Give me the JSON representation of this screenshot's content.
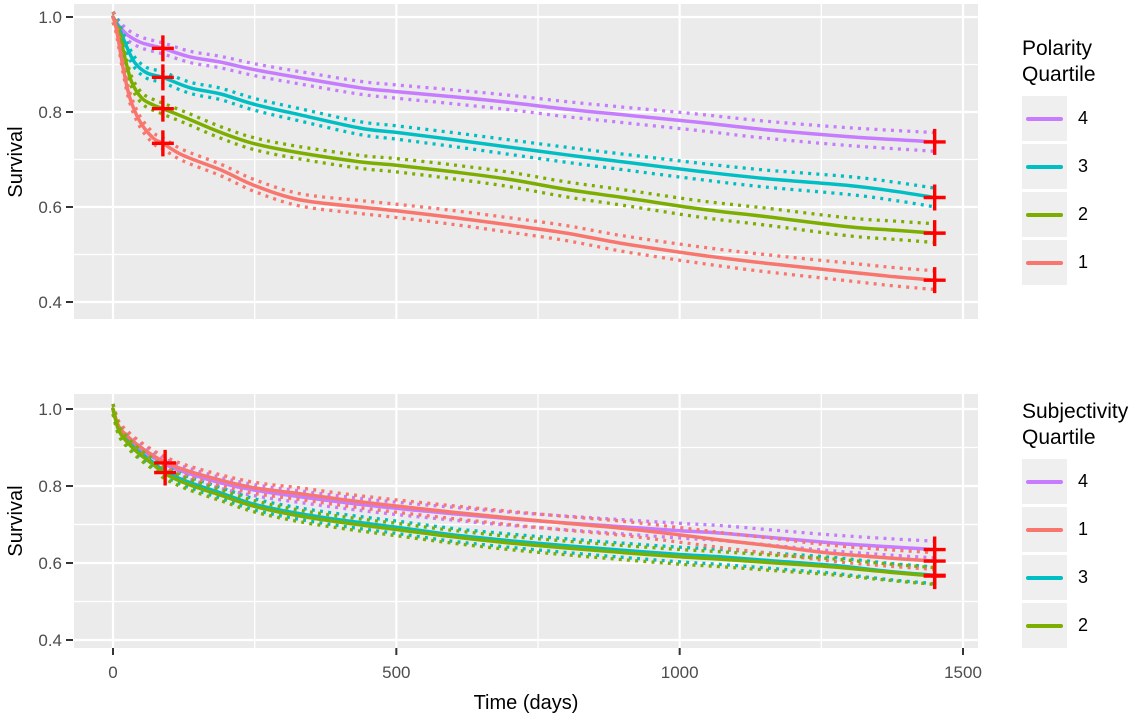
{
  "colors": {
    "page_bg": "#FFFFFF",
    "panel_bg": "#EBEBEB",
    "grid": "#FFFFFF",
    "axis_text": "#4D4D4D",
    "axis_tick": "#333333",
    "axis_title": "#000000",
    "censor_mark": "#FF0000",
    "legend_key_bg": "#EFEFEF",
    "quartile_1": "#F8766D",
    "quartile_2": "#7CAE00",
    "quartile_3": "#00BFC4",
    "quartile_4": "#C77CFF"
  },
  "chart_data": [
    {
      "id": "polarity-survival",
      "type": "line",
      "title": "",
      "xlabel": "",
      "ylabel": "Survival",
      "xlim": [
        -75,
        1530
      ],
      "ylim": [
        0.4,
        1.0
      ],
      "grid": true,
      "show_x_tick_labels": false,
      "x_ticks": [
        {
          "v": 0,
          "label": "0"
        },
        {
          "v": 500,
          "label": "500"
        },
        {
          "v": 1000,
          "label": "1000"
        },
        {
          "v": 1500,
          "label": "1500"
        }
      ],
      "x_minor": [
        250,
        750,
        1250
      ],
      "y_ticks": [
        {
          "v": 1.0,
          "label": "1.0"
        },
        {
          "v": 0.8,
          "label": "0.8"
        },
        {
          "v": 0.6,
          "label": "0.6"
        },
        {
          "v": 0.4,
          "label": "0.4"
        }
      ],
      "y_minor": [
        0.9,
        0.7,
        0.5
      ],
      "legend": {
        "title": "Polarity\nQuartile",
        "position": "right",
        "entries": [
          {
            "label": "4",
            "color": "#C77CFF"
          },
          {
            "label": "3",
            "color": "#00BFC4"
          },
          {
            "label": "2",
            "color": "#7CAE00"
          },
          {
            "label": "1",
            "color": "#F8766D"
          }
        ]
      },
      "ci": {
        "style": "dotted",
        "base": 0.011,
        "per_day": 6e-06
      },
      "series": [
        {
          "name": "4",
          "color": "#C77CFF",
          "points": [
            [
              0,
              1.0
            ],
            [
              6,
              0.989
            ],
            [
              12,
              0.979
            ],
            [
              26,
              0.962
            ],
            [
              48,
              0.947
            ],
            [
              68,
              0.94
            ],
            [
              88,
              0.934
            ],
            [
              136,
              0.916
            ],
            [
              190,
              0.905
            ],
            [
              250,
              0.889
            ],
            [
              330,
              0.872
            ],
            [
              436,
              0.851
            ],
            [
              500,
              0.843
            ],
            [
              600,
              0.832
            ],
            [
              700,
              0.82
            ],
            [
              800,
              0.806
            ],
            [
              900,
              0.794
            ],
            [
              1035,
              0.778
            ],
            [
              1150,
              0.763
            ],
            [
              1300,
              0.748
            ],
            [
              1450,
              0.737
            ]
          ]
        },
        {
          "name": "3",
          "color": "#00BFC4",
          "points": [
            [
              0,
              1.0
            ],
            [
              6,
              0.987
            ],
            [
              12,
              0.973
            ],
            [
              25,
              0.935
            ],
            [
              39,
              0.903
            ],
            [
              60,
              0.882
            ],
            [
              88,
              0.873
            ],
            [
              136,
              0.851
            ],
            [
              190,
              0.838
            ],
            [
              250,
              0.816
            ],
            [
              330,
              0.794
            ],
            [
              436,
              0.766
            ],
            [
              500,
              0.757
            ],
            [
              600,
              0.742
            ],
            [
              700,
              0.726
            ],
            [
              800,
              0.71
            ],
            [
              900,
              0.695
            ],
            [
              1035,
              0.675
            ],
            [
              1150,
              0.66
            ],
            [
              1300,
              0.645
            ],
            [
              1380,
              0.633
            ],
            [
              1450,
              0.62
            ]
          ]
        },
        {
          "name": "2",
          "color": "#7CAE00",
          "points": [
            [
              0,
              1.0
            ],
            [
              6,
              0.98
            ],
            [
              12,
              0.962
            ],
            [
              21,
              0.914
            ],
            [
              33,
              0.863
            ],
            [
              51,
              0.829
            ],
            [
              71,
              0.815
            ],
            [
              88,
              0.807
            ],
            [
              130,
              0.787
            ],
            [
              190,
              0.757
            ],
            [
              250,
              0.733
            ],
            [
              330,
              0.714
            ],
            [
              436,
              0.695
            ],
            [
              500,
              0.688
            ],
            [
              600,
              0.674
            ],
            [
              700,
              0.658
            ],
            [
              800,
              0.637
            ],
            [
              900,
              0.62
            ],
            [
              1035,
              0.596
            ],
            [
              1150,
              0.58
            ],
            [
              1300,
              0.558
            ],
            [
              1380,
              0.551
            ],
            [
              1450,
              0.545
            ]
          ]
        },
        {
          "name": "1",
          "color": "#F8766D",
          "points": [
            [
              0,
              1.0
            ],
            [
              4,
              0.985
            ],
            [
              9,
              0.956
            ],
            [
              18,
              0.892
            ],
            [
              30,
              0.829
            ],
            [
              48,
              0.779
            ],
            [
              71,
              0.745
            ],
            [
              88,
              0.734
            ],
            [
              123,
              0.709
            ],
            [
              190,
              0.678
            ],
            [
              250,
              0.645
            ],
            [
              330,
              0.615
            ],
            [
              436,
              0.6
            ],
            [
              500,
              0.592
            ],
            [
              600,
              0.578
            ],
            [
              700,
              0.562
            ],
            [
              800,
              0.545
            ],
            [
              900,
              0.523
            ],
            [
              1035,
              0.499
            ],
            [
              1150,
              0.482
            ],
            [
              1300,
              0.463
            ],
            [
              1380,
              0.453
            ],
            [
              1450,
              0.446
            ]
          ]
        }
      ],
      "censor_marks": [
        [
          88,
          0.934
        ],
        [
          88,
          0.873
        ],
        [
          88,
          0.807
        ],
        [
          88,
          0.734
        ],
        [
          1450,
          0.737
        ],
        [
          1450,
          0.62
        ],
        [
          1450,
          0.545
        ],
        [
          1450,
          0.446
        ]
      ]
    },
    {
      "id": "subjectivity-survival",
      "type": "line",
      "title": "",
      "xlabel": "Time (days)",
      "ylabel": "Survival",
      "xlim": [
        -75,
        1530
      ],
      "ylim": [
        0.4,
        1.0
      ],
      "grid": true,
      "show_x_tick_labels": true,
      "x_ticks": [
        {
          "v": 0,
          "label": "0"
        },
        {
          "v": 500,
          "label": "500"
        },
        {
          "v": 1000,
          "label": "1000"
        },
        {
          "v": 1500,
          "label": "1500"
        }
      ],
      "x_minor": [
        250,
        750,
        1250
      ],
      "y_ticks": [
        {
          "v": 1.0,
          "label": "1.0"
        },
        {
          "v": 0.8,
          "label": "0.8"
        },
        {
          "v": 0.6,
          "label": "0.6"
        },
        {
          "v": 0.4,
          "label": "0.4"
        }
      ],
      "y_minor": [
        0.9,
        0.7,
        0.5
      ],
      "legend": {
        "title": "Subjectivity\nQuartile",
        "position": "right",
        "entries": [
          {
            "label": "4",
            "color": "#C77CFF"
          },
          {
            "label": "1",
            "color": "#F8766D"
          },
          {
            "label": "3",
            "color": "#00BFC4"
          },
          {
            "label": "2",
            "color": "#7CAE00"
          }
        ]
      },
      "ci": {
        "style": "dotted",
        "base": 0.013,
        "per_day": 6e-06
      },
      "series": [
        {
          "name": "4",
          "color": "#C77CFF",
          "points": [
            [
              0,
              1.0
            ],
            [
              10,
              0.952
            ],
            [
              25,
              0.926
            ],
            [
              45,
              0.9
            ],
            [
              70,
              0.875
            ],
            [
              92,
              0.856
            ],
            [
              130,
              0.834
            ],
            [
              190,
              0.808
            ],
            [
              250,
              0.789
            ],
            [
              330,
              0.772
            ],
            [
              420,
              0.755
            ],
            [
              500,
              0.742
            ],
            [
              600,
              0.728
            ],
            [
              700,
              0.715
            ],
            [
              800,
              0.704
            ],
            [
              900,
              0.694
            ],
            [
              1000,
              0.684
            ],
            [
              1070,
              0.678
            ],
            [
              1170,
              0.665
            ],
            [
              1270,
              0.652
            ],
            [
              1370,
              0.642
            ],
            [
              1450,
              0.635
            ]
          ]
        },
        {
          "name": "3",
          "color": "#00BFC4",
          "points": [
            [
              0,
              1.0
            ],
            [
              10,
              0.948
            ],
            [
              25,
              0.918
            ],
            [
              45,
              0.89
            ],
            [
              70,
              0.862
            ],
            [
              92,
              0.838
            ],
            [
              130,
              0.812
            ],
            [
              190,
              0.782
            ],
            [
              250,
              0.752
            ],
            [
              330,
              0.728
            ],
            [
              420,
              0.708
            ],
            [
              500,
              0.693
            ],
            [
              600,
              0.673
            ],
            [
              700,
              0.658
            ],
            [
              800,
              0.645
            ],
            [
              900,
              0.633
            ],
            [
              1000,
              0.622
            ],
            [
              1070,
              0.616
            ],
            [
              1170,
              0.605
            ],
            [
              1270,
              0.594
            ],
            [
              1370,
              0.578
            ],
            [
              1450,
              0.568
            ]
          ]
        },
        {
          "name": "1",
          "color": "#F8766D",
          "points": [
            [
              0,
              1.0
            ],
            [
              10,
              0.955
            ],
            [
              25,
              0.93
            ],
            [
              45,
              0.905
            ],
            [
              70,
              0.88
            ],
            [
              92,
              0.862
            ],
            [
              130,
              0.84
            ],
            [
              190,
              0.815
            ],
            [
              250,
              0.795
            ],
            [
              330,
              0.78
            ],
            [
              420,
              0.762
            ],
            [
              500,
              0.748
            ],
            [
              600,
              0.732
            ],
            [
              700,
              0.717
            ],
            [
              800,
              0.703
            ],
            [
              900,
              0.69
            ],
            [
              1000,
              0.673
            ],
            [
              1070,
              0.66
            ],
            [
              1170,
              0.643
            ],
            [
              1270,
              0.625
            ],
            [
              1370,
              0.613
            ],
            [
              1450,
              0.605
            ]
          ]
        },
        {
          "name": "2",
          "color": "#7CAE00",
          "points": [
            [
              0,
              1.0
            ],
            [
              10,
              0.945
            ],
            [
              25,
              0.914
            ],
            [
              45,
              0.885
            ],
            [
              70,
              0.857
            ],
            [
              92,
              0.832
            ],
            [
              130,
              0.806
            ],
            [
              190,
              0.776
            ],
            [
              250,
              0.747
            ],
            [
              330,
              0.722
            ],
            [
              420,
              0.702
            ],
            [
              500,
              0.687
            ],
            [
              600,
              0.668
            ],
            [
              700,
              0.652
            ],
            [
              800,
              0.639
            ],
            [
              900,
              0.627
            ],
            [
              1000,
              0.616
            ],
            [
              1070,
              0.61
            ],
            [
              1170,
              0.6
            ],
            [
              1270,
              0.59
            ],
            [
              1370,
              0.576
            ],
            [
              1450,
              0.566
            ]
          ]
        }
      ],
      "censor_marks": [
        [
          92,
          0.86
        ],
        [
          92,
          0.835
        ],
        [
          1450,
          0.635
        ],
        [
          1450,
          0.605
        ],
        [
          1450,
          0.568
        ],
        [
          1450,
          0.566
        ]
      ]
    }
  ]
}
